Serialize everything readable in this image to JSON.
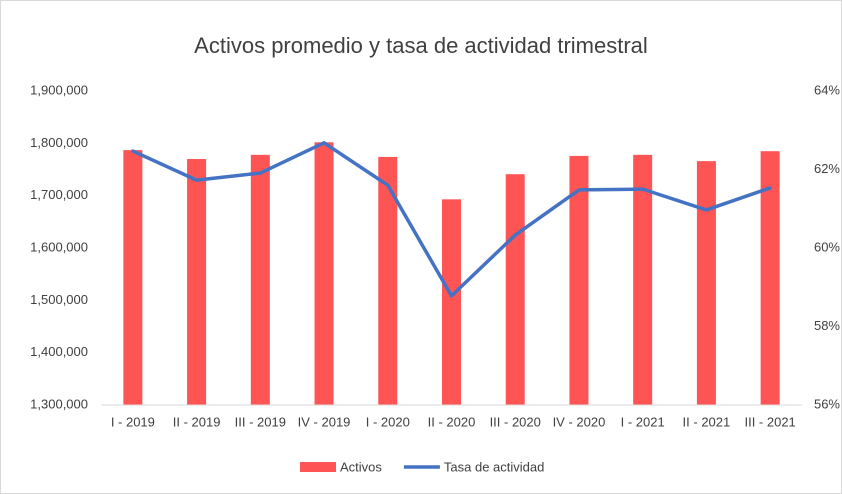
{
  "chart_data": {
    "type": "bar_line",
    "title": "Activos promedio y tasa de actividad trimestral",
    "categories": [
      "I - 2019",
      "II - 2019",
      "III - 2019",
      "IV - 2019",
      "I - 2020",
      "II - 2020",
      "III - 2020",
      "IV - 2020",
      "I - 2021",
      "II - 2021",
      "III - 2021"
    ],
    "series": [
      {
        "name": "Activos",
        "color": "#fe5454",
        "kind": "bar",
        "axis": "y",
        "values": [
          1787000,
          1770000,
          1778000,
          1802000,
          1774000,
          1693000,
          1741000,
          1776000,
          1778000,
          1766000,
          1785000
        ]
      },
      {
        "name": "Tasa de actividad",
        "color": "#4472c4",
        "kind": "line",
        "axis": "y2",
        "values": [
          62.47,
          61.73,
          61.91,
          62.68,
          61.6,
          58.78,
          60.33,
          61.48,
          61.5,
          60.97,
          61.53
        ]
      }
    ],
    "ylim": [
      1300000,
      1900000
    ],
    "yticks": [
      {
        "value": 1300000,
        "label": "1,300,000"
      },
      {
        "value": 1400000,
        "label": "1,400,000"
      },
      {
        "value": 1500000,
        "label": "1,500,000"
      },
      {
        "value": 1600000,
        "label": "1,600,000"
      },
      {
        "value": 1700000,
        "label": "1,700,000"
      },
      {
        "value": 1800000,
        "label": "1,800,000"
      },
      {
        "value": 1900000,
        "label": "1,900,000"
      }
    ],
    "y2lim": [
      56,
      64
    ],
    "y2ticks": [
      {
        "value": 56,
        "label": "56%"
      },
      {
        "value": 58,
        "label": "58%"
      },
      {
        "value": 60,
        "label": "60%"
      },
      {
        "value": 62,
        "label": "62%"
      },
      {
        "value": 64,
        "label": "64%"
      }
    ],
    "grid": false,
    "legend": "bottom"
  }
}
